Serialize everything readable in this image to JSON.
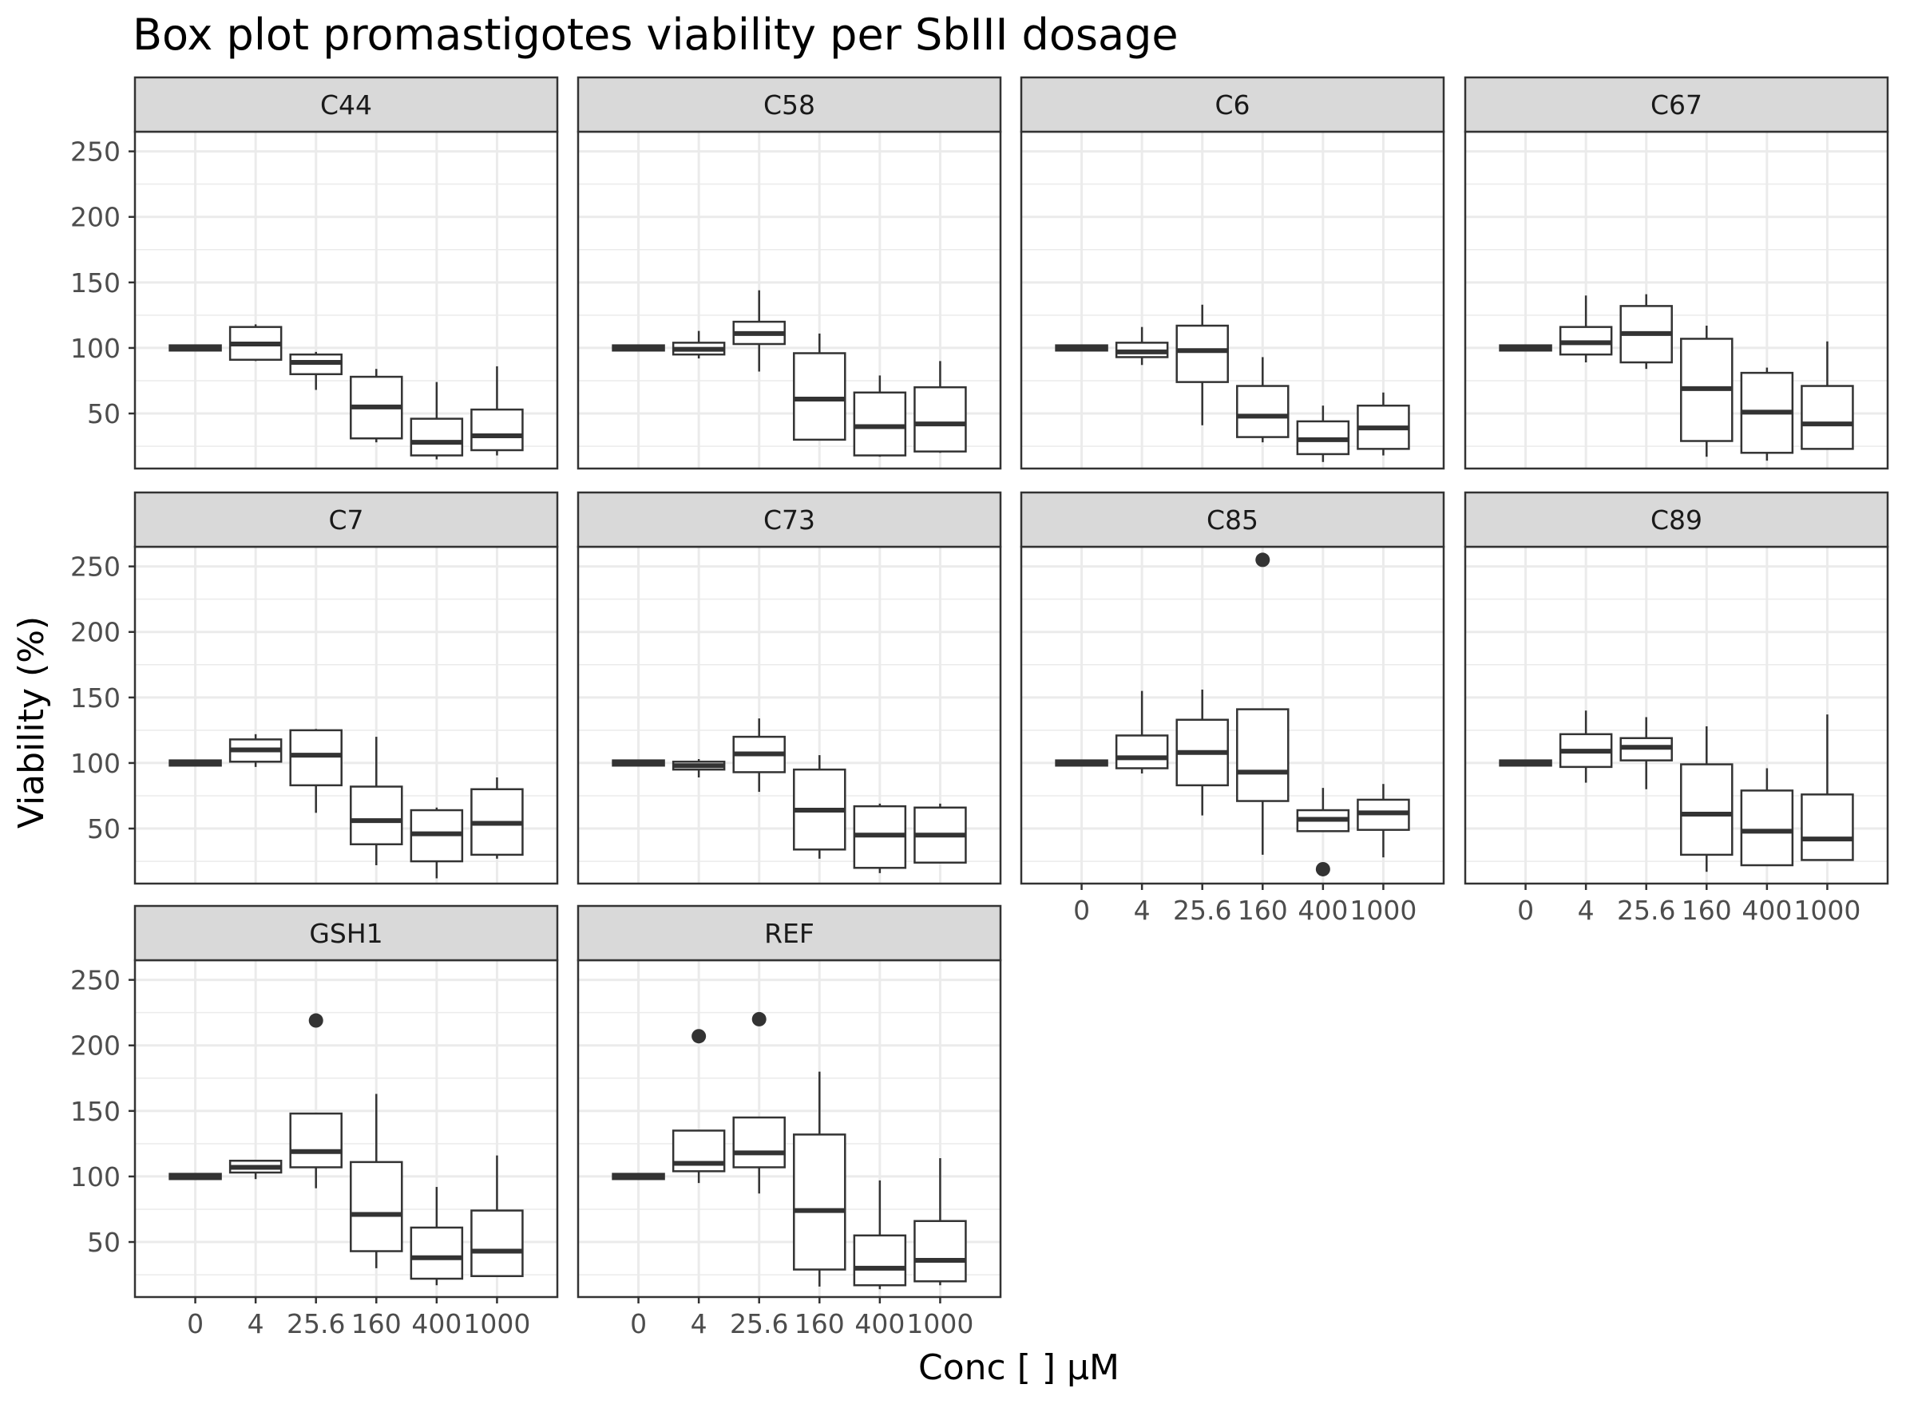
{
  "chart_data": {
    "type": "box",
    "title": "Box plot promastigotes viability per SbIII dosage",
    "xlabel": "Conc [   ] µM",
    "ylabel": "Viability (%)",
    "categories": [
      "0",
      "4",
      "25.6",
      "160",
      "400",
      "1000"
    ],
    "yticks": [
      50,
      100,
      150,
      200,
      250
    ],
    "ylim": [
      8,
      265
    ],
    "grid": true,
    "panels": [
      {
        "name": "C44",
        "boxes": [
          {
            "x": "0",
            "whislo": 98,
            "q1": 98,
            "med": 100,
            "q3": 102,
            "whishi": 102
          },
          {
            "x": "4",
            "whislo": 90,
            "q1": 91,
            "med": 103,
            "q3": 116,
            "whishi": 118
          },
          {
            "x": "25.6",
            "whislo": 68,
            "q1": 80,
            "med": 89,
            "q3": 95,
            "whishi": 97
          },
          {
            "x": "160",
            "whislo": 28,
            "q1": 31,
            "med": 55,
            "q3": 78,
            "whishi": 84
          },
          {
            "x": "400",
            "whislo": 15,
            "q1": 18,
            "med": 28,
            "q3": 46,
            "whishi": 74
          },
          {
            "x": "1000",
            "whislo": 18,
            "q1": 22,
            "med": 33,
            "q3": 53,
            "whishi": 86
          }
        ],
        "outliers": []
      },
      {
        "name": "C58",
        "boxes": [
          {
            "x": "0",
            "whislo": 98,
            "q1": 98,
            "med": 100,
            "q3": 102,
            "whishi": 102
          },
          {
            "x": "4",
            "whislo": 92,
            "q1": 95,
            "med": 99,
            "q3": 104,
            "whishi": 113
          },
          {
            "x": "25.6",
            "whislo": 82,
            "q1": 103,
            "med": 111,
            "q3": 120,
            "whishi": 144
          },
          {
            "x": "160",
            "whislo": 30,
            "q1": 30,
            "med": 61,
            "q3": 96,
            "whishi": 111
          },
          {
            "x": "400",
            "whislo": 17,
            "q1": 18,
            "med": 40,
            "q3": 66,
            "whishi": 79
          },
          {
            "x": "1000",
            "whislo": 20,
            "q1": 21,
            "med": 42,
            "q3": 70,
            "whishi": 90
          }
        ],
        "outliers": []
      },
      {
        "name": "C6",
        "boxes": [
          {
            "x": "0",
            "whislo": 98,
            "q1": 98,
            "med": 100,
            "q3": 102,
            "whishi": 102
          },
          {
            "x": "4",
            "whislo": 87,
            "q1": 93,
            "med": 97,
            "q3": 104,
            "whishi": 116
          },
          {
            "x": "25.6",
            "whislo": 41,
            "q1": 74,
            "med": 98,
            "q3": 117,
            "whishi": 133
          },
          {
            "x": "160",
            "whislo": 28,
            "q1": 32,
            "med": 48,
            "q3": 71,
            "whishi": 93
          },
          {
            "x": "400",
            "whislo": 13,
            "q1": 19,
            "med": 30,
            "q3": 44,
            "whishi": 56
          },
          {
            "x": "1000",
            "whislo": 18,
            "q1": 23,
            "med": 39,
            "q3": 56,
            "whishi": 66
          }
        ],
        "outliers": []
      },
      {
        "name": "C67",
        "boxes": [
          {
            "x": "0",
            "whislo": 98,
            "q1": 98,
            "med": 100,
            "q3": 102,
            "whishi": 102
          },
          {
            "x": "4",
            "whislo": 89,
            "q1": 95,
            "med": 104,
            "q3": 116,
            "whishi": 140
          },
          {
            "x": "25.6",
            "whislo": 84,
            "q1": 89,
            "med": 111,
            "q3": 132,
            "whishi": 141
          },
          {
            "x": "160",
            "whislo": 17,
            "q1": 29,
            "med": 69,
            "q3": 107,
            "whishi": 117
          },
          {
            "x": "400",
            "whislo": 14,
            "q1": 20,
            "med": 51,
            "q3": 81,
            "whishi": 85
          },
          {
            "x": "1000",
            "whislo": 23,
            "q1": 23,
            "med": 42,
            "q3": 71,
            "whishi": 105
          }
        ],
        "outliers": []
      },
      {
        "name": "C7",
        "boxes": [
          {
            "x": "0",
            "whislo": 98,
            "q1": 98,
            "med": 100,
            "q3": 102,
            "whishi": 102
          },
          {
            "x": "4",
            "whislo": 97,
            "q1": 101,
            "med": 110,
            "q3": 118,
            "whishi": 122
          },
          {
            "x": "25.6",
            "whislo": 62,
            "q1": 83,
            "med": 106,
            "q3": 125,
            "whishi": 126
          },
          {
            "x": "160",
            "whislo": 22,
            "q1": 38,
            "med": 56,
            "q3": 82,
            "whishi": 120
          },
          {
            "x": "400",
            "whislo": 12,
            "q1": 25,
            "med": 46,
            "q3": 64,
            "whishi": 66
          },
          {
            "x": "1000",
            "whislo": 27,
            "q1": 30,
            "med": 54,
            "q3": 80,
            "whishi": 89
          }
        ],
        "outliers": []
      },
      {
        "name": "C73",
        "boxes": [
          {
            "x": "0",
            "whislo": 98,
            "q1": 98,
            "med": 100,
            "q3": 102,
            "whishi": 102
          },
          {
            "x": "4",
            "whislo": 89,
            "q1": 95,
            "med": 98,
            "q3": 101,
            "whishi": 103
          },
          {
            "x": "25.6",
            "whislo": 78,
            "q1": 93,
            "med": 107,
            "q3": 120,
            "whishi": 134
          },
          {
            "x": "160",
            "whislo": 27,
            "q1": 34,
            "med": 64,
            "q3": 95,
            "whishi": 106
          },
          {
            "x": "400",
            "whislo": 16,
            "q1": 20,
            "med": 45,
            "q3": 67,
            "whishi": 69
          },
          {
            "x": "1000",
            "whislo": 24,
            "q1": 24,
            "med": 45,
            "q3": 66,
            "whishi": 69
          }
        ],
        "outliers": []
      },
      {
        "name": "C85",
        "boxes": [
          {
            "x": "0",
            "whislo": 98,
            "q1": 98,
            "med": 100,
            "q3": 102,
            "whishi": 102
          },
          {
            "x": "4",
            "whislo": 92,
            "q1": 96,
            "med": 104,
            "q3": 121,
            "whishi": 155
          },
          {
            "x": "25.6",
            "whislo": 60,
            "q1": 83,
            "med": 108,
            "q3": 133,
            "whishi": 156
          },
          {
            "x": "160",
            "whislo": 30,
            "q1": 71,
            "med": 93,
            "q3": 141,
            "whishi": 141
          },
          {
            "x": "400",
            "whislo": 48,
            "q1": 48,
            "med": 57,
            "q3": 64,
            "whishi": 81
          },
          {
            "x": "1000",
            "whislo": 28,
            "q1": 49,
            "med": 62,
            "q3": 72,
            "whishi": 84
          }
        ],
        "outliers": [
          {
            "x": "160",
            "y": 255
          },
          {
            "x": "400",
            "y": 19
          }
        ]
      },
      {
        "name": "C89",
        "boxes": [
          {
            "x": "0",
            "whislo": 98,
            "q1": 98,
            "med": 100,
            "q3": 102,
            "whishi": 102
          },
          {
            "x": "4",
            "whislo": 85,
            "q1": 97,
            "med": 109,
            "q3": 122,
            "whishi": 140
          },
          {
            "x": "25.6",
            "whislo": 80,
            "q1": 102,
            "med": 112,
            "q3": 119,
            "whishi": 135
          },
          {
            "x": "160",
            "whislo": 17,
            "q1": 30,
            "med": 61,
            "q3": 99,
            "whishi": 128
          },
          {
            "x": "400",
            "whislo": 22,
            "q1": 22,
            "med": 48,
            "q3": 79,
            "whishi": 96
          },
          {
            "x": "1000",
            "whislo": 26,
            "q1": 26,
            "med": 42,
            "q3": 76,
            "whishi": 137
          }
        ],
        "outliers": []
      },
      {
        "name": "GSH1",
        "boxes": [
          {
            "x": "0",
            "whislo": 98,
            "q1": 98,
            "med": 100,
            "q3": 102,
            "whishi": 102
          },
          {
            "x": "4",
            "whislo": 98,
            "q1": 103,
            "med": 107,
            "q3": 112,
            "whishi": 112
          },
          {
            "x": "25.6",
            "whislo": 91,
            "q1": 107,
            "med": 119,
            "q3": 148,
            "whishi": 148
          },
          {
            "x": "160",
            "whislo": 30,
            "q1": 43,
            "med": 71,
            "q3": 111,
            "whishi": 163
          },
          {
            "x": "400",
            "whislo": 17,
            "q1": 22,
            "med": 38,
            "q3": 61,
            "whishi": 92
          },
          {
            "x": "1000",
            "whislo": 24,
            "q1": 24,
            "med": 43,
            "q3": 74,
            "whishi": 116
          }
        ],
        "outliers": [
          {
            "x": "25.6",
            "y": 219
          }
        ]
      },
      {
        "name": "REF",
        "boxes": [
          {
            "x": "0",
            "whislo": 98,
            "q1": 98,
            "med": 100,
            "q3": 102,
            "whishi": 102
          },
          {
            "x": "4",
            "whislo": 95,
            "q1": 104,
            "med": 110,
            "q3": 135,
            "whishi": 135
          },
          {
            "x": "25.6",
            "whislo": 87,
            "q1": 107,
            "med": 118,
            "q3": 145,
            "whishi": 145
          },
          {
            "x": "160",
            "whislo": 16,
            "q1": 29,
            "med": 74,
            "q3": 132,
            "whishi": 180
          },
          {
            "x": "400",
            "whislo": 14,
            "q1": 17,
            "med": 30,
            "q3": 55,
            "whishi": 97
          },
          {
            "x": "1000",
            "whislo": 17,
            "q1": 20,
            "med": 36,
            "q3": 66,
            "whishi": 114
          }
        ],
        "outliers": [
          {
            "x": "4",
            "y": 207
          },
          {
            "x": "25.6",
            "y": 220
          }
        ]
      }
    ]
  }
}
